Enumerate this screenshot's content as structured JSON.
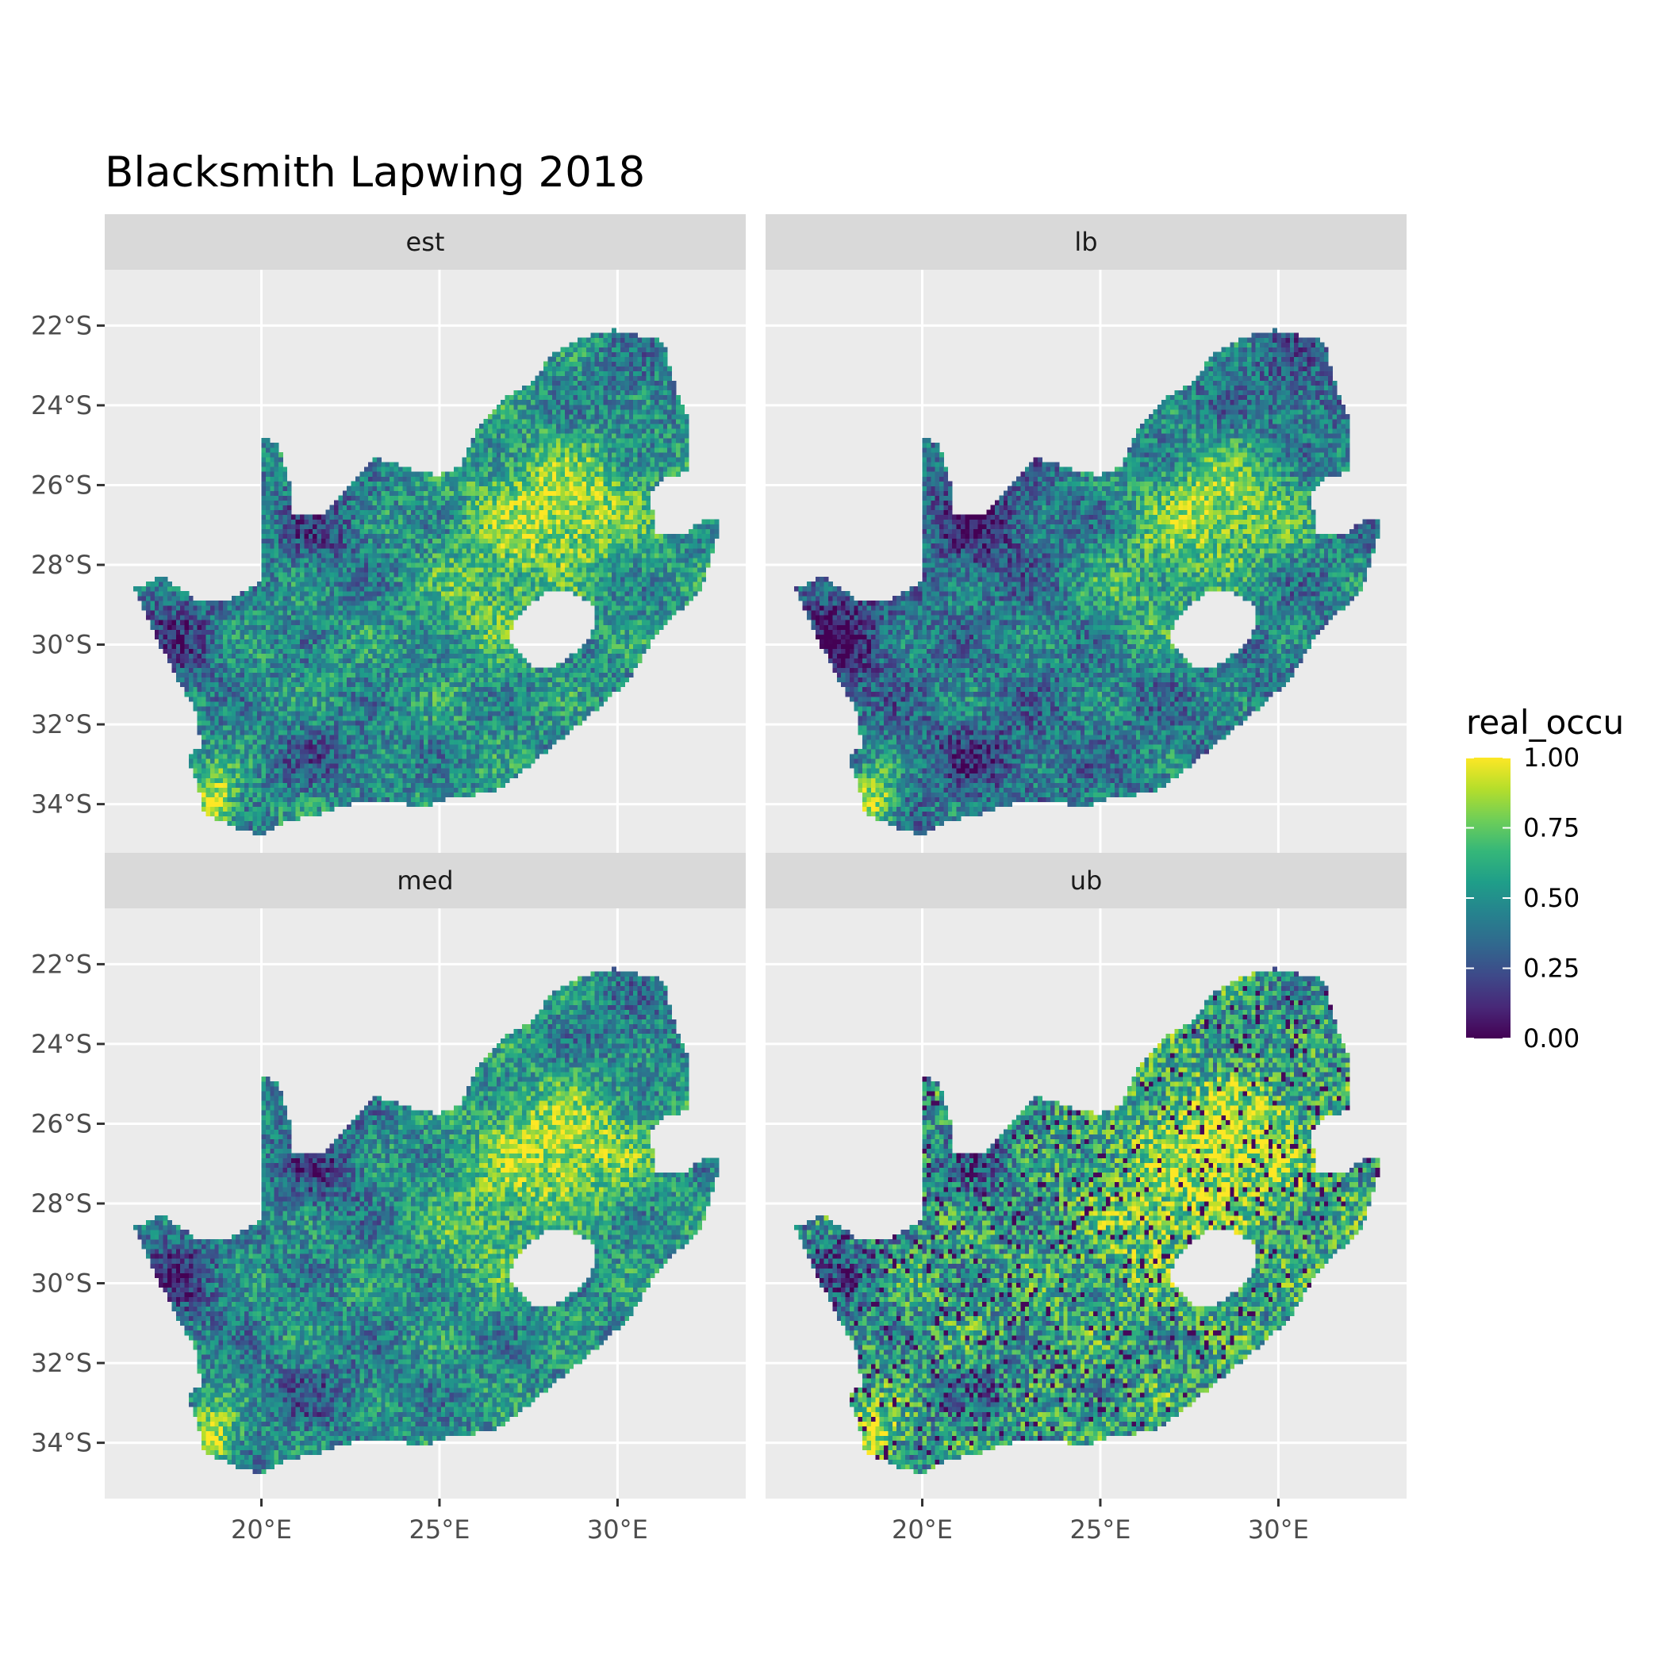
{
  "chart_data": {
    "type": "heatmap",
    "title": "Blacksmith Lapwing 2018",
    "xlabel": "",
    "ylabel": "",
    "facet_order": [
      "est",
      "lb",
      "med",
      "ub"
    ],
    "panels": [
      {
        "name": "est",
        "low_offset": 0.0,
        "high_offset": 0.0,
        "noise": 0.22
      },
      {
        "name": "lb",
        "low_offset": -0.14,
        "high_offset": -0.04,
        "noise": 0.22
      },
      {
        "name": "med",
        "low_offset": -0.02,
        "high_offset": 0.0,
        "noise": 0.22
      },
      {
        "name": "ub",
        "low_offset": 0.1,
        "high_offset": 0.04,
        "noise": 0.3
      }
    ],
    "x_ticks": [
      {
        "value": 20,
        "label": "20°E"
      },
      {
        "value": 25,
        "label": "25°E"
      },
      {
        "value": 30,
        "label": "30°E"
      }
    ],
    "y_ticks": [
      {
        "value": -22,
        "label": "22°S"
      },
      {
        "value": -24,
        "label": "24°S"
      },
      {
        "value": -26,
        "label": "26°S"
      },
      {
        "value": -28,
        "label": "28°S"
      },
      {
        "value": -30,
        "label": "30°S"
      },
      {
        "value": -32,
        "label": "32°S"
      },
      {
        "value": -34,
        "label": "34°S"
      }
    ],
    "xlim": [
      15.6,
      33.6
    ],
    "ylim": [
      -35.4,
      -20.6
    ],
    "legend": {
      "title": "real_occu",
      "position": "right",
      "range": [
        0,
        1
      ],
      "breaks": [
        {
          "value": 1.0,
          "label": "1.00"
        },
        {
          "value": 0.75,
          "label": "0.75"
        },
        {
          "value": 0.5,
          "label": "0.50"
        },
        {
          "value": 0.25,
          "label": "0.25"
        },
        {
          "value": 0.0,
          "label": "0.00"
        }
      ]
    },
    "colormap": "viridis",
    "colorscale": [
      "#440154",
      "#482878",
      "#3e4989",
      "#31688e",
      "#26828e",
      "#1f9e89",
      "#35b779",
      "#6ece58",
      "#b5de2b",
      "#fde725"
    ],
    "grid": true,
    "panel_background": "#ebebeb",
    "strip_background": "#d9d9d9",
    "mask_regions": [
      {
        "name": "South Africa",
        "polygon": [
          [
            16.45,
            -28.6
          ],
          [
            17.2,
            -28.3
          ],
          [
            18.2,
            -28.9
          ],
          [
            19.0,
            -28.9
          ],
          [
            20.0,
            -28.45
          ],
          [
            20.0,
            -24.75
          ],
          [
            20.5,
            -25.0
          ],
          [
            20.8,
            -25.9
          ],
          [
            20.8,
            -26.8
          ],
          [
            21.7,
            -26.8
          ],
          [
            22.7,
            -25.8
          ],
          [
            23.2,
            -25.3
          ],
          [
            24.2,
            -25.6
          ],
          [
            25.0,
            -25.75
          ],
          [
            25.6,
            -25.5
          ],
          [
            26.0,
            -24.7
          ],
          [
            26.9,
            -23.8
          ],
          [
            27.6,
            -23.4
          ],
          [
            28.2,
            -22.7
          ],
          [
            29.0,
            -22.3
          ],
          [
            29.9,
            -22.1
          ],
          [
            31.3,
            -22.4
          ],
          [
            31.6,
            -23.5
          ],
          [
            32.0,
            -24.3
          ],
          [
            32.0,
            -25.6
          ],
          [
            31.6,
            -25.8
          ],
          [
            31.3,
            -25.8
          ],
          [
            30.9,
            -26.3
          ],
          [
            31.1,
            -27.2
          ],
          [
            31.9,
            -27.2
          ],
          [
            32.6,
            -26.8
          ],
          [
            32.9,
            -26.85
          ],
          [
            32.7,
            -27.6
          ],
          [
            32.4,
            -28.5
          ],
          [
            32.0,
            -29.0
          ],
          [
            31.4,
            -29.4
          ],
          [
            30.9,
            -30.0
          ],
          [
            30.3,
            -30.9
          ],
          [
            29.3,
            -31.7
          ],
          [
            28.5,
            -32.3
          ],
          [
            27.6,
            -33.0
          ],
          [
            26.5,
            -33.7
          ],
          [
            25.7,
            -33.8
          ],
          [
            25.0,
            -33.9
          ],
          [
            24.5,
            -34.1
          ],
          [
            23.6,
            -33.9
          ],
          [
            22.5,
            -34.0
          ],
          [
            21.5,
            -34.3
          ],
          [
            20.8,
            -34.4
          ],
          [
            20.0,
            -34.8
          ],
          [
            19.3,
            -34.6
          ],
          [
            18.8,
            -34.4
          ],
          [
            18.4,
            -34.3
          ],
          [
            18.35,
            -33.9
          ],
          [
            18.1,
            -33.3
          ],
          [
            17.9,
            -32.8
          ],
          [
            18.3,
            -32.6
          ],
          [
            18.2,
            -31.7
          ],
          [
            17.6,
            -30.8
          ],
          [
            17.1,
            -29.9
          ]
        ]
      },
      {
        "name": "Lesotho",
        "polygon": [
          [
            27.0,
            -29.6
          ],
          [
            27.5,
            -29.0
          ],
          [
            28.0,
            -28.7
          ],
          [
            28.6,
            -28.6
          ],
          [
            29.3,
            -29.0
          ],
          [
            29.4,
            -29.5
          ],
          [
            29.1,
            -30.0
          ],
          [
            28.5,
            -30.4
          ],
          [
            28.1,
            -30.6
          ],
          [
            27.7,
            -30.6
          ],
          [
            27.3,
            -30.3
          ],
          [
            27.0,
            -29.9
          ]
        ]
      }
    ]
  }
}
